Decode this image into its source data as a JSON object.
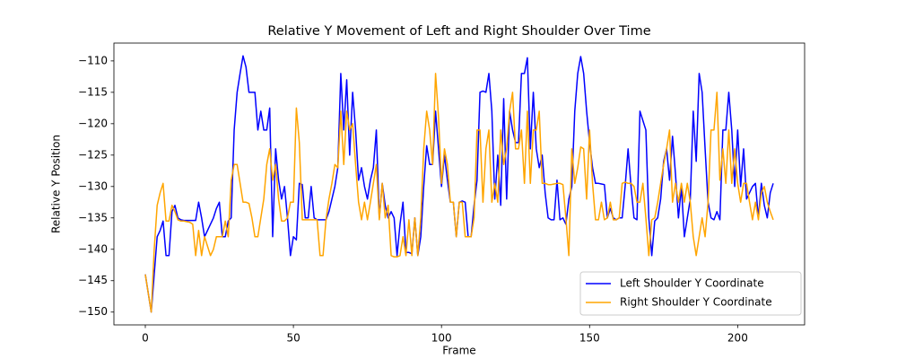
{
  "chart_data": {
    "type": "line",
    "title": "Relative Y Movement of Left and Right Shoulder Over Time",
    "x_label": "Frame",
    "y_label": "Relative Y Position",
    "x": [
      0,
      1,
      2,
      3,
      4,
      5,
      6,
      7,
      8,
      9,
      10,
      11,
      12,
      13,
      14,
      15,
      16,
      17,
      18,
      19,
      20,
      21,
      22,
      23,
      24,
      25,
      26,
      27,
      28,
      29,
      30,
      31,
      32,
      33,
      34,
      35,
      36,
      37,
      38,
      39,
      40,
      41,
      42,
      43,
      44,
      45,
      46,
      47,
      48,
      49,
      50,
      51,
      52,
      53,
      54,
      55,
      56,
      57,
      58,
      59,
      60,
      61,
      62,
      63,
      64,
      65,
      66,
      67,
      68,
      69,
      70,
      71,
      72,
      73,
      74,
      75,
      76,
      77,
      78,
      79,
      80,
      81,
      82,
      83,
      84,
      85,
      86,
      87,
      88,
      89,
      90,
      91,
      92,
      93,
      94,
      95,
      96,
      97,
      98,
      99,
      100,
      101,
      102,
      103,
      104,
      105,
      106,
      107,
      108,
      109,
      110,
      111,
      112,
      113,
      114,
      115,
      116,
      117,
      118,
      119,
      120,
      121,
      122,
      123,
      124,
      125,
      126,
      127,
      128,
      129,
      130,
      131,
      132,
      133,
      134,
      135,
      136,
      137,
      138,
      139,
      140,
      141,
      142,
      143,
      144,
      145,
      146,
      147,
      148,
      149,
      150,
      151,
      152,
      153,
      154,
      155,
      156,
      157,
      158,
      159,
      160,
      161,
      162,
      163,
      164,
      165,
      166,
      167,
      168,
      169,
      170,
      171,
      172,
      173,
      174,
      175,
      176,
      177,
      178,
      179,
      180,
      181,
      182,
      183,
      184,
      185,
      186,
      187,
      188,
      189,
      190,
      191,
      192,
      193,
      194,
      195,
      196,
      197,
      198,
      199,
      200,
      201,
      202,
      203,
      204,
      205,
      206,
      207,
      208,
      209,
      210,
      211,
      212
    ],
    "series": [
      {
        "name": "Left Shoulder Y Coordinate",
        "color": "#0000ff",
        "values": [
          -144,
          -147,
          -150,
          -144,
          -138,
          -137,
          -135.5,
          -141,
          -141,
          -134,
          -133,
          -135,
          -135.3,
          -135.4,
          -135.4,
          -135.4,
          -135.4,
          -135.4,
          -132.5,
          -135,
          -138,
          -137,
          -136,
          -135,
          -133.5,
          -132.5,
          -138,
          -138,
          -135.5,
          -135,
          -121,
          -115,
          -112,
          -109.2,
          -111,
          -115,
          -115,
          -115,
          -121,
          -118,
          -121,
          -121,
          -117.5,
          -138,
          -124,
          -129,
          -132,
          -130,
          -135,
          -141,
          -138,
          -138.5,
          -129.5,
          -129.7,
          -135,
          -135,
          -130,
          -135,
          -135.3,
          -135.3,
          -135.3,
          -135.3,
          -134,
          -132,
          -130,
          -127,
          -112,
          -121,
          -113,
          -125,
          -115,
          -121,
          -129,
          -127,
          -130,
          -132,
          -129,
          -127,
          -121,
          -135,
          -129.5,
          -133,
          -135,
          -134,
          -135,
          -141,
          -136,
          -132.5,
          -140.5,
          -140.5,
          -140.7,
          -135,
          -141,
          -138,
          -130,
          -123.5,
          -126.5,
          -126.5,
          -118,
          -124,
          -130,
          -125,
          -129,
          -132.5,
          -132.5,
          -138,
          -132.5,
          -132.3,
          -132.5,
          -138,
          -138,
          -133,
          -129,
          -115,
          -114.8,
          -115,
          -112,
          -118,
          -132,
          -125,
          -133,
          -116,
          -132,
          -118,
          -121,
          -123,
          -123,
          -112,
          -112,
          -109.5,
          -124,
          -115,
          -124,
          -127,
          -125,
          -131,
          -135,
          -135.3,
          -135.3,
          -129,
          -135.3,
          -135,
          -136,
          -132,
          -130,
          -118,
          -112,
          -109.3,
          -112,
          -118,
          -123,
          -127,
          -129.5,
          -129.5,
          -129.6,
          -129.7,
          -135,
          -133.5,
          -135,
          -135.3,
          -135,
          -135,
          -130,
          -124,
          -130,
          -135,
          -135.3,
          -118,
          -119.5,
          -121,
          -135,
          -141,
          -135.5,
          -135,
          -132,
          -126,
          -124,
          -129,
          -122,
          -128,
          -135,
          -130,
          -138,
          -135,
          -132,
          -118,
          -126,
          -112,
          -115,
          -124,
          -132.5,
          -135,
          -135.3,
          -134,
          -135.3,
          -121,
          -121,
          -115,
          -121,
          -130,
          -121,
          -130,
          -124,
          -132,
          -131,
          -130,
          -129.5,
          -135,
          -129.5,
          -133,
          -135,
          -131,
          -129.5
        ]
      },
      {
        "name": "Right Shoulder Y Coordinate",
        "color": "#ffa500",
        "values": [
          -144,
          -147,
          -150,
          -140,
          -133,
          -131,
          -129.5,
          -135.5,
          -135.5,
          -133,
          -134,
          -135.3,
          -135.5,
          -135.5,
          -135.6,
          -135.7,
          -136,
          -141,
          -137,
          -141,
          -138,
          -139.5,
          -141,
          -140,
          -138,
          -138,
          -138,
          -135.5,
          -138,
          -129,
          -126.5,
          -126.5,
          -129.5,
          -132.5,
          -132.5,
          -132.7,
          -135,
          -138,
          -138,
          -135,
          -132,
          -126.5,
          -124,
          -129,
          -126.5,
          -132,
          -135.5,
          -135.5,
          -135,
          -132.5,
          -132.5,
          -117.5,
          -123,
          -135.3,
          -135.3,
          -135.3,
          -135.3,
          -135.3,
          -135.3,
          -141,
          -141,
          -135.3,
          -132,
          -129.5,
          -126.5,
          -127,
          -118,
          -126.5,
          -118,
          -121,
          -120,
          -126.5,
          -132.5,
          -135.3,
          -132.5,
          -135.3,
          -132.5,
          -129.5,
          -126.5,
          -135.3,
          -129.5,
          -135,
          -133,
          -141,
          -141.2,
          -141.2,
          -141,
          -138,
          -141,
          -135.3,
          -141,
          -135,
          -141,
          -135,
          -124,
          -118,
          -121,
          -126.5,
          -112,
          -119,
          -129.5,
          -124,
          -126.5,
          -132.5,
          -132.5,
          -138,
          -132.5,
          -132.5,
          -138,
          -138,
          -138,
          -135,
          -121,
          -121,
          -132.5,
          -124,
          -121,
          -132.5,
          -129.5,
          -132.5,
          -121,
          -126.5,
          -124,
          -118,
          -115,
          -124,
          -124,
          -121,
          -129.5,
          -118,
          -129.5,
          -121,
          -121,
          -118,
          -129.5,
          -129.5,
          -129.7,
          -129.7,
          -129.6,
          -129.5,
          -129.5,
          -129.7,
          -135,
          -141,
          -124,
          -129.5,
          -127,
          -123.7,
          -124,
          -132,
          -121,
          -129.5,
          -135.3,
          -135.3,
          -132.5,
          -135.3,
          -135,
          -132.5,
          -135.3,
          -135.3,
          -135,
          -129.5,
          -129.3,
          -129.5,
          -129.5,
          -130,
          -132.5,
          -132.5,
          -129.5,
          -135,
          -141,
          -135.3,
          -135,
          -132.5,
          -129.5,
          -126.5,
          -124,
          -121,
          -132.5,
          -129.5,
          -132.5,
          -129.5,
          -132.5,
          -129.5,
          -132.5,
          -138,
          -141,
          -138,
          -135,
          -138,
          -132.5,
          -121,
          -121,
          -115,
          -129,
          -124,
          -129.5,
          -121,
          -129.5,
          -124,
          -129.5,
          -132.5,
          -129.5,
          -129.5,
          -132.5,
          -135.3,
          -132.5,
          -135.3,
          -131,
          -130,
          -132.5,
          -134,
          -135.3
        ]
      }
    ],
    "xlim": [
      -10.6,
      222.6
    ],
    "ylim": [
      -152.04,
      -107.16
    ],
    "xticks": [
      0,
      50,
      100,
      150,
      200
    ],
    "yticks": [
      {
        "value": -150,
        "label": "−150"
      },
      {
        "value": -145,
        "label": "−145"
      },
      {
        "value": -140,
        "label": "−140"
      },
      {
        "value": -135,
        "label": "−135"
      },
      {
        "value": -130,
        "label": "−130"
      },
      {
        "value": -125,
        "label": "−125"
      },
      {
        "value": -120,
        "label": "−120"
      },
      {
        "value": -115,
        "label": "−115"
      },
      {
        "value": -110,
        "label": "−110"
      }
    ],
    "legend": "lower right",
    "grid": false
  }
}
